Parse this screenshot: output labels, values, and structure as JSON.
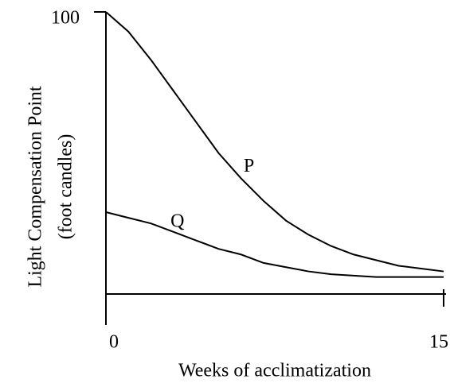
{
  "chart_data": {
    "type": "line",
    "ylabel": [
      "Light Compensation Point",
      "(foot candles)"
    ],
    "xlabel": "Weeks of acclimatization",
    "x": [
      0,
      1,
      2,
      3,
      4,
      5,
      6,
      7,
      8,
      9,
      10,
      11,
      12,
      13,
      14,
      15
    ],
    "series": [
      {
        "name": "P",
        "color": "#000000",
        "values": [
          100,
          93,
          83,
          72,
          61,
          50,
          41,
          33,
          26,
          21,
          17,
          14,
          12,
          10,
          9,
          8
        ]
      },
      {
        "name": "Q",
        "color": "#000000",
        "values": [
          29,
          27,
          25,
          22,
          19,
          16,
          14,
          11,
          9.5,
          8,
          7,
          6.5,
          6,
          6,
          6,
          6
        ]
      }
    ],
    "xlim": [
      0,
      15
    ],
    "xticks": [
      0,
      15
    ],
    "ylim": [
      -11,
      100
    ],
    "yticks": [
      100
    ],
    "grid": false
  }
}
